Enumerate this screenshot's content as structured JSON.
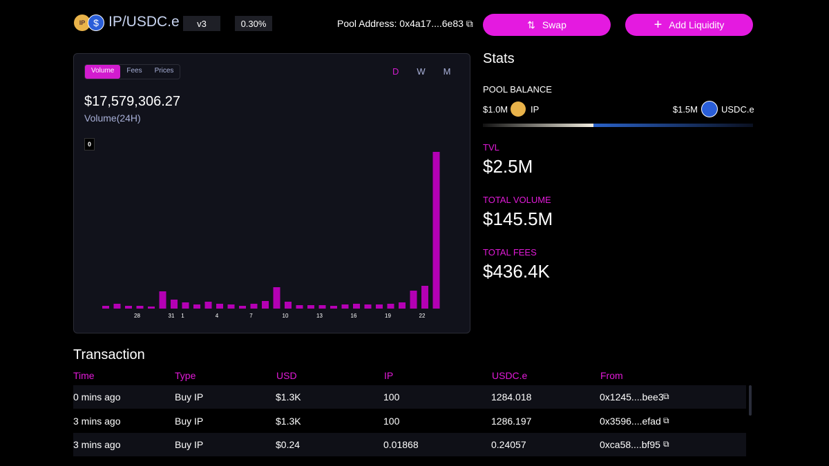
{
  "header": {
    "pair": "IP/USDC.e",
    "version": "v3",
    "fee": "0.30%",
    "pool_address_label": "Pool Address:",
    "pool_address": "0x4a17....6e83",
    "buttons": [
      "Swap",
      "Add Liquidity"
    ]
  },
  "chart_data": {
    "type": "bar",
    "tabs": [
      "Volume",
      "Fees",
      "Prices"
    ],
    "periods": [
      "D",
      "W",
      "M"
    ],
    "headline": "$17,579,306.27",
    "headline_label": "Volume(24H)",
    "tooltip": "0",
    "categories": [
      null,
      null,
      null,
      "28",
      null,
      null,
      "31",
      "1",
      null,
      null,
      "4",
      null,
      null,
      "7",
      null,
      null,
      "10",
      null,
      null,
      "13",
      null,
      null,
      "16",
      null,
      null,
      "19",
      null,
      null,
      "22",
      null
    ],
    "values": [
      4,
      7,
      4,
      4,
      3,
      25,
      13,
      9,
      6,
      10,
      7,
      6,
      4,
      7,
      11,
      31,
      10,
      5,
      5,
      5,
      4,
      6,
      7,
      6,
      6,
      7,
      9,
      26,
      33,
      227
    ],
    "color": "#b400b4",
    "ylim": [
      0,
      230
    ]
  },
  "stats": {
    "title": "Stats",
    "pool_balance_label": "POOL BALANCE",
    "balances": [
      {
        "amount": "$1.0M",
        "token": "IP"
      },
      {
        "amount": "$1.5M",
        "token": "USDC.e"
      }
    ],
    "metrics": [
      {
        "label": "TVL",
        "value": "$2.5M"
      },
      {
        "label": "TOTAL VOLUME",
        "value": "$145.5M"
      },
      {
        "label": "TOTAL FEES",
        "value": "$436.4K"
      }
    ]
  },
  "transactions": {
    "title": "Transaction",
    "columns": [
      "Time",
      "Type",
      "USD",
      "IP",
      "USDC.e",
      "From"
    ],
    "rows": [
      [
        "0 mins ago",
        "Buy IP",
        "$1.3K",
        "100",
        "1284.018",
        "0x1245....bee3"
      ],
      [
        "3 mins ago",
        "Buy IP",
        "$1.3K",
        "100",
        "1286.197",
        "0x3596....efad"
      ],
      [
        "3 mins ago",
        "Buy IP",
        "$0.24",
        "0.01868",
        "0.24057",
        "0xca58....bf95"
      ]
    ]
  }
}
